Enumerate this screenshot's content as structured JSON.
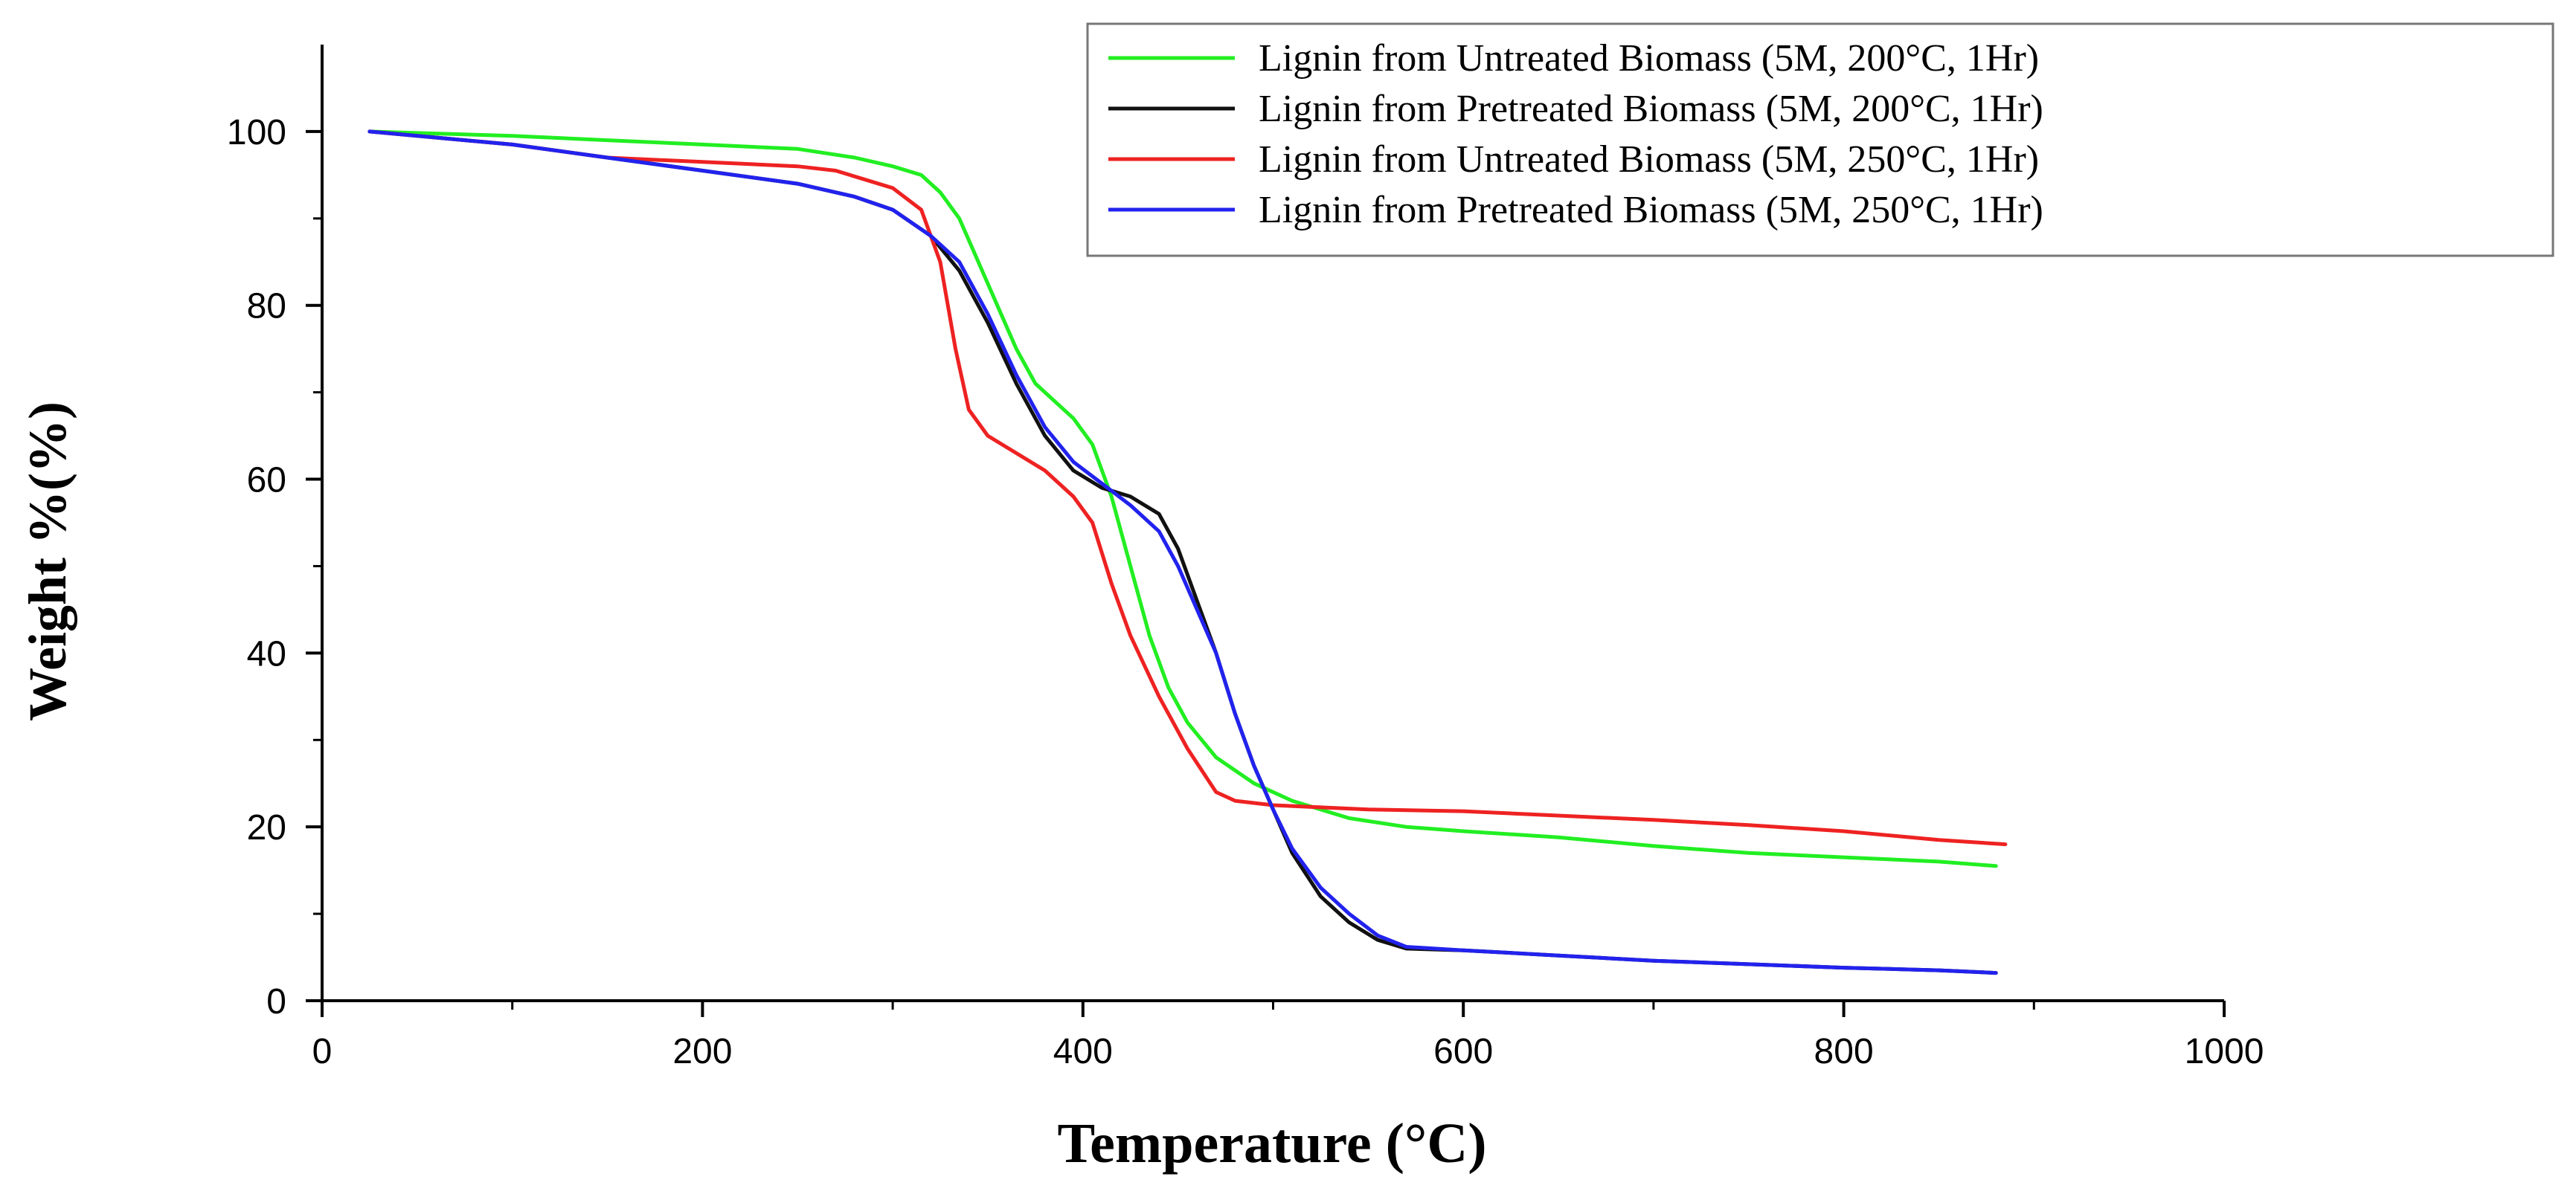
{
  "chart_data": {
    "type": "line",
    "title": "",
    "xlabel": "Temperature (°C)",
    "ylabel": "Weight %(%)",
    "xlim": [
      0,
      1000
    ],
    "ylim": [
      0,
      110
    ],
    "xticks": [
      0,
      200,
      400,
      600,
      800,
      1000
    ],
    "yticks": [
      0,
      20,
      40,
      60,
      80,
      100
    ],
    "grid": false,
    "legend_position": "top-right",
    "series": [
      {
        "name": "Lignin from Untreated Biomass (5M, 200°C, 1Hr)",
        "color": "#22ee22",
        "x": [
          25,
          100,
          150,
          200,
          250,
          280,
          300,
          315,
          325,
          335,
          345,
          355,
          365,
          375,
          385,
          395,
          405,
          415,
          425,
          435,
          445,
          455,
          470,
          490,
          510,
          540,
          570,
          600,
          650,
          700,
          750,
          800,
          850,
          880
        ],
        "y": [
          100,
          99.5,
          99,
          98.5,
          98,
          97,
          96,
          95,
          93,
          90,
          85,
          80,
          75,
          71,
          69,
          67,
          64,
          58,
          50,
          42,
          36,
          32,
          28,
          25,
          23,
          21,
          20,
          19.5,
          18.8,
          17.8,
          17,
          16.5,
          16,
          15.5
        ]
      },
      {
        "name": "Lignin from Pretreated Biomass (5M, 200°C, 1Hr)",
        "color": "#111111",
        "x": [
          25,
          100,
          150,
          200,
          250,
          280,
          300,
          320,
          335,
          350,
          365,
          380,
          395,
          410,
          425,
          440,
          450,
          460,
          470,
          480,
          490,
          500,
          510,
          525,
          540,
          555,
          570,
          600,
          650,
          700,
          750,
          800,
          850,
          880
        ],
        "y": [
          100,
          98.5,
          97,
          95.5,
          94,
          92.5,
          91,
          88,
          84,
          78,
          71,
          65,
          61,
          59,
          58,
          56,
          52,
          46,
          40,
          33,
          27,
          22,
          17,
          12,
          9,
          7,
          6,
          5.8,
          5.2,
          4.6,
          4.2,
          3.8,
          3.5,
          3.2
        ]
      },
      {
        "name": "Lignin from Untreated Biomass (5M, 250°C, 1Hr)",
        "color": "#ee2222",
        "x": [
          25,
          100,
          150,
          200,
          250,
          270,
          285,
          300,
          315,
          325,
          333,
          340,
          350,
          365,
          380,
          395,
          405,
          415,
          425,
          440,
          455,
          470,
          480,
          500,
          550,
          600,
          650,
          700,
          750,
          800,
          850,
          885
        ],
        "y": [
          100,
          98.5,
          97,
          96.5,
          96,
          95.5,
          94.5,
          93.5,
          91,
          85,
          75,
          68,
          65,
          63,
          61,
          58,
          55,
          48,
          42,
          35,
          29,
          24,
          23,
          22.5,
          22,
          21.8,
          21.3,
          20.8,
          20.2,
          19.5,
          18.5,
          18
        ]
      },
      {
        "name": "Lignin from Pretreated Biomass (5M, 250°C, 1Hr)",
        "color": "#2222ee",
        "x": [
          25,
          100,
          150,
          200,
          250,
          280,
          300,
          320,
          335,
          350,
          365,
          380,
          395,
          410,
          425,
          440,
          450,
          460,
          470,
          480,
          490,
          500,
          510,
          525,
          540,
          555,
          570,
          600,
          650,
          700,
          750,
          800,
          850,
          880
        ],
        "y": [
          100,
          98.5,
          97,
          95.5,
          94,
          92.5,
          91,
          88,
          85,
          79,
          72,
          66,
          62,
          59.5,
          57,
          54,
          50,
          45,
          40,
          33,
          27,
          22,
          17.5,
          13,
          10,
          7.5,
          6.2,
          5.8,
          5.2,
          4.6,
          4.2,
          3.8,
          3.5,
          3.2
        ]
      }
    ]
  }
}
